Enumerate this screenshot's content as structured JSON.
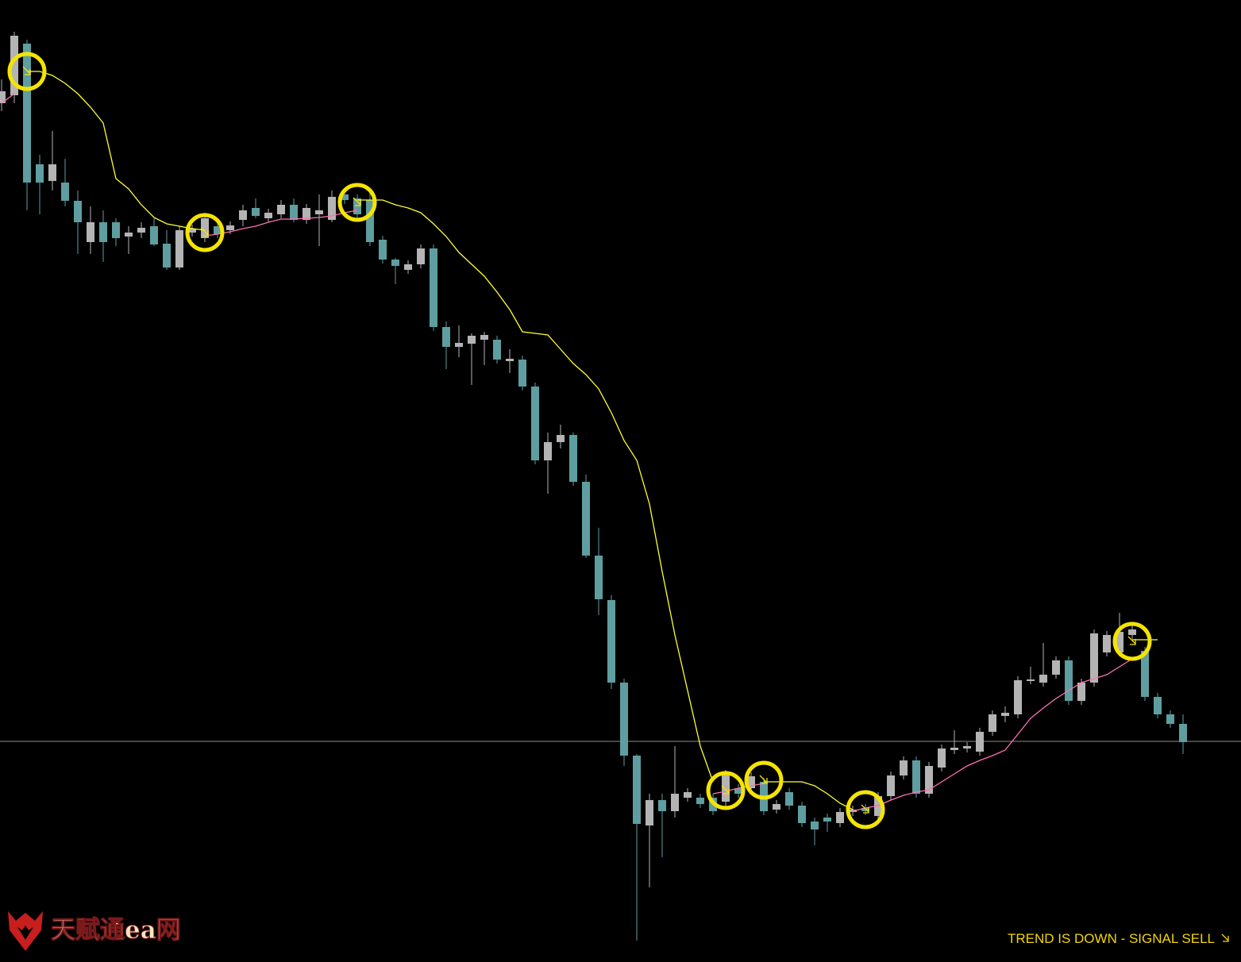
{
  "chart_data": {
    "type": "candlestick",
    "up_color": "#b4b4b4",
    "down_color": "#5f9ea0",
    "open": [
      1082,
      1092,
      1157,
      1005,
      984,
      982,
      959,
      907,
      932,
      932,
      914,
      919,
      927,
      905,
      875,
      919,
      912,
      927,
      922,
      935,
      950,
      937,
      942,
      954,
      935,
      942,
      935,
      967,
      962,
      960,
      910,
      885,
      872,
      879,
      899,
      800,
      775,
      779,
      784,
      784,
      757,
      759,
      725,
      632,
      655,
      664,
      605,
      512,
      456,
      352,
      260,
      172,
      204,
      190,
      207,
      207,
      207,
      202,
      219,
      219,
      227,
      192,
      214,
      197,
      177,
      182,
      175,
      189,
      194,
      184,
      209,
      235,
      254,
      212,
      245,
      267,
      269,
      265,
      290,
      310,
      312,
      354,
      352,
      362,
      380,
      329,
      352,
      390,
      390,
      412,
      392,
      334,
      312,
      300
    ],
    "high": [
      1112,
      1172,
      1162,
      1017,
      1047,
      1012,
      972,
      952,
      947,
      937,
      927,
      932,
      937,
      922,
      927,
      929,
      944,
      932,
      933,
      954,
      962,
      949,
      960,
      962,
      955,
      967,
      972,
      972,
      967,
      972,
      915,
      887,
      884,
      904,
      904,
      807,
      802,
      792,
      794,
      789,
      772,
      764,
      730,
      667,
      677,
      667,
      614,
      547,
      462,
      357,
      262,
      212,
      212,
      272,
      219,
      212,
      212,
      242,
      224,
      239,
      232,
      204,
      219,
      202,
      182,
      187,
      194,
      197,
      199,
      214,
      240,
      259,
      259,
      252,
      274,
      292,
      277,
      295,
      317,
      322,
      360,
      372,
      402,
      385,
      385,
      357,
      419,
      417,
      440,
      424,
      397,
      339,
      317,
      312
    ],
    "low": [
      1072,
      1082,
      947,
      942,
      972,
      952,
      892,
      892,
      882,
      902,
      892,
      912,
      902,
      872,
      872,
      914,
      907,
      912,
      917,
      927,
      937,
      932,
      937,
      932,
      930,
      902,
      932,
      955,
      937,
      902,
      880,
      854,
      867,
      874,
      795,
      747,
      762,
      727,
      752,
      754,
      742,
      720,
      627,
      590,
      647,
      600,
      509,
      437,
      344,
      247,
      27,
      94,
      132,
      182,
      202,
      194,
      185,
      192,
      207,
      214,
      185,
      187,
      192,
      170,
      147,
      164,
      170,
      184,
      185,
      179,
      204,
      230,
      207,
      207,
      240,
      262,
      264,
      260,
      285,
      302,
      307,
      350,
      347,
      357,
      324,
      324,
      347,
      385,
      385,
      407,
      329,
      307,
      295,
      262
    ],
    "close": [
      1097,
      1167,
      982,
      982,
      1005,
      959,
      932,
      932,
      907,
      912,
      919,
      925,
      904,
      875,
      922,
      924,
      937,
      917,
      928,
      947,
      940,
      944,
      954,
      935,
      950,
      947,
      964,
      960,
      942,
      907,
      885,
      877,
      879,
      899,
      800,
      775,
      780,
      789,
      790,
      759,
      760,
      725,
      632,
      655,
      664,
      605,
      512,
      457,
      352,
      260,
      174,
      204,
      190,
      212,
      214,
      199,
      190,
      237,
      212,
      234,
      190,
      199,
      197,
      175,
      167,
      177,
      189,
      192,
      190,
      209,
      235,
      254,
      212,
      247,
      269,
      270,
      272,
      290,
      312,
      314,
      355,
      356,
      362,
      380,
      329,
      352,
      414,
      412,
      416,
      419,
      334,
      312,
      300,
      277
    ],
    "overlays": [
      {
        "color": "#ff6fb4",
        "x": [
          0,
          1
        ],
        "values": [
          1082,
          1094
        ]
      },
      {
        "color": "#ffff33",
        "x": [
          2,
          3,
          4,
          5,
          6,
          7,
          8,
          9,
          10,
          11,
          12,
          13,
          14,
          15,
          16
        ],
        "values": [
          1122,
          1122,
          1117,
          1107,
          1094,
          1077,
          1057,
          987,
          974,
          954,
          938,
          930,
          927,
          924,
          922
        ]
      },
      {
        "color": "#ff6fb4",
        "x": [
          16,
          17,
          18,
          19,
          20,
          21,
          22,
          23,
          24,
          25,
          26,
          27,
          28
        ],
        "values": [
          915,
          917,
          920,
          924,
          927,
          932,
          936,
          936,
          937,
          938,
          940,
          944,
          947
        ]
      },
      {
        "color": "#ffff33",
        "x": [
          28,
          29,
          30,
          31,
          32,
          33,
          34,
          35,
          36,
          37,
          38,
          39,
          40,
          41,
          42,
          43,
          44,
          45,
          46,
          47,
          48,
          49,
          50,
          51,
          52,
          53,
          54,
          55,
          56
        ],
        "values": [
          960,
          960,
          960,
          954,
          950,
          944,
          930,
          914,
          894,
          879,
          864,
          844,
          822,
          794,
          792,
          790,
          772,
          754,
          740,
          722,
          692,
          657,
          632,
          577,
          492,
          412,
          342,
          272,
          227
        ]
      },
      {
        "color": "#ff6fb4",
        "x": [
          56,
          57,
          58,
          59,
          60
        ],
        "values": [
          212,
          215,
          219,
          222,
          225
        ]
      },
      {
        "color": "#ffff33",
        "x": [
          60,
          61,
          62,
          63,
          64,
          65,
          66,
          67
        ],
        "values": [
          227,
          227,
          227,
          227,
          222,
          212,
          200,
          192
        ]
      },
      {
        "color": "#ff6fb4",
        "x": [
          67,
          68,
          69,
          70,
          71,
          72,
          73,
          74,
          75,
          76,
          77,
          78,
          79,
          80,
          81,
          82,
          83,
          84,
          85,
          86,
          87,
          88,
          89
        ],
        "values": [
          190,
          194,
          197,
          204,
          210,
          214,
          217,
          227,
          237,
          247,
          254,
          260,
          267,
          287,
          307,
          320,
          332,
          342,
          352,
          357,
          362,
          372,
          382
        ]
      },
      {
        "color": "#ffff33",
        "x": [
          89,
          90,
          91
        ],
        "values": [
          406,
          406,
          406
        ]
      }
    ],
    "signals": {
      "color": "#f5e400",
      "x": [
        2,
        16,
        28,
        57,
        60,
        68,
        89
      ],
      "values": [
        1122,
        919,
        957,
        216,
        229,
        192,
        404
      ]
    },
    "price_line": 278,
    "ylim": [
      0,
      1212
    ],
    "annotation": "TREND IS DOWN - SIGNAL SELL"
  },
  "watermark": "天赋通ea网"
}
